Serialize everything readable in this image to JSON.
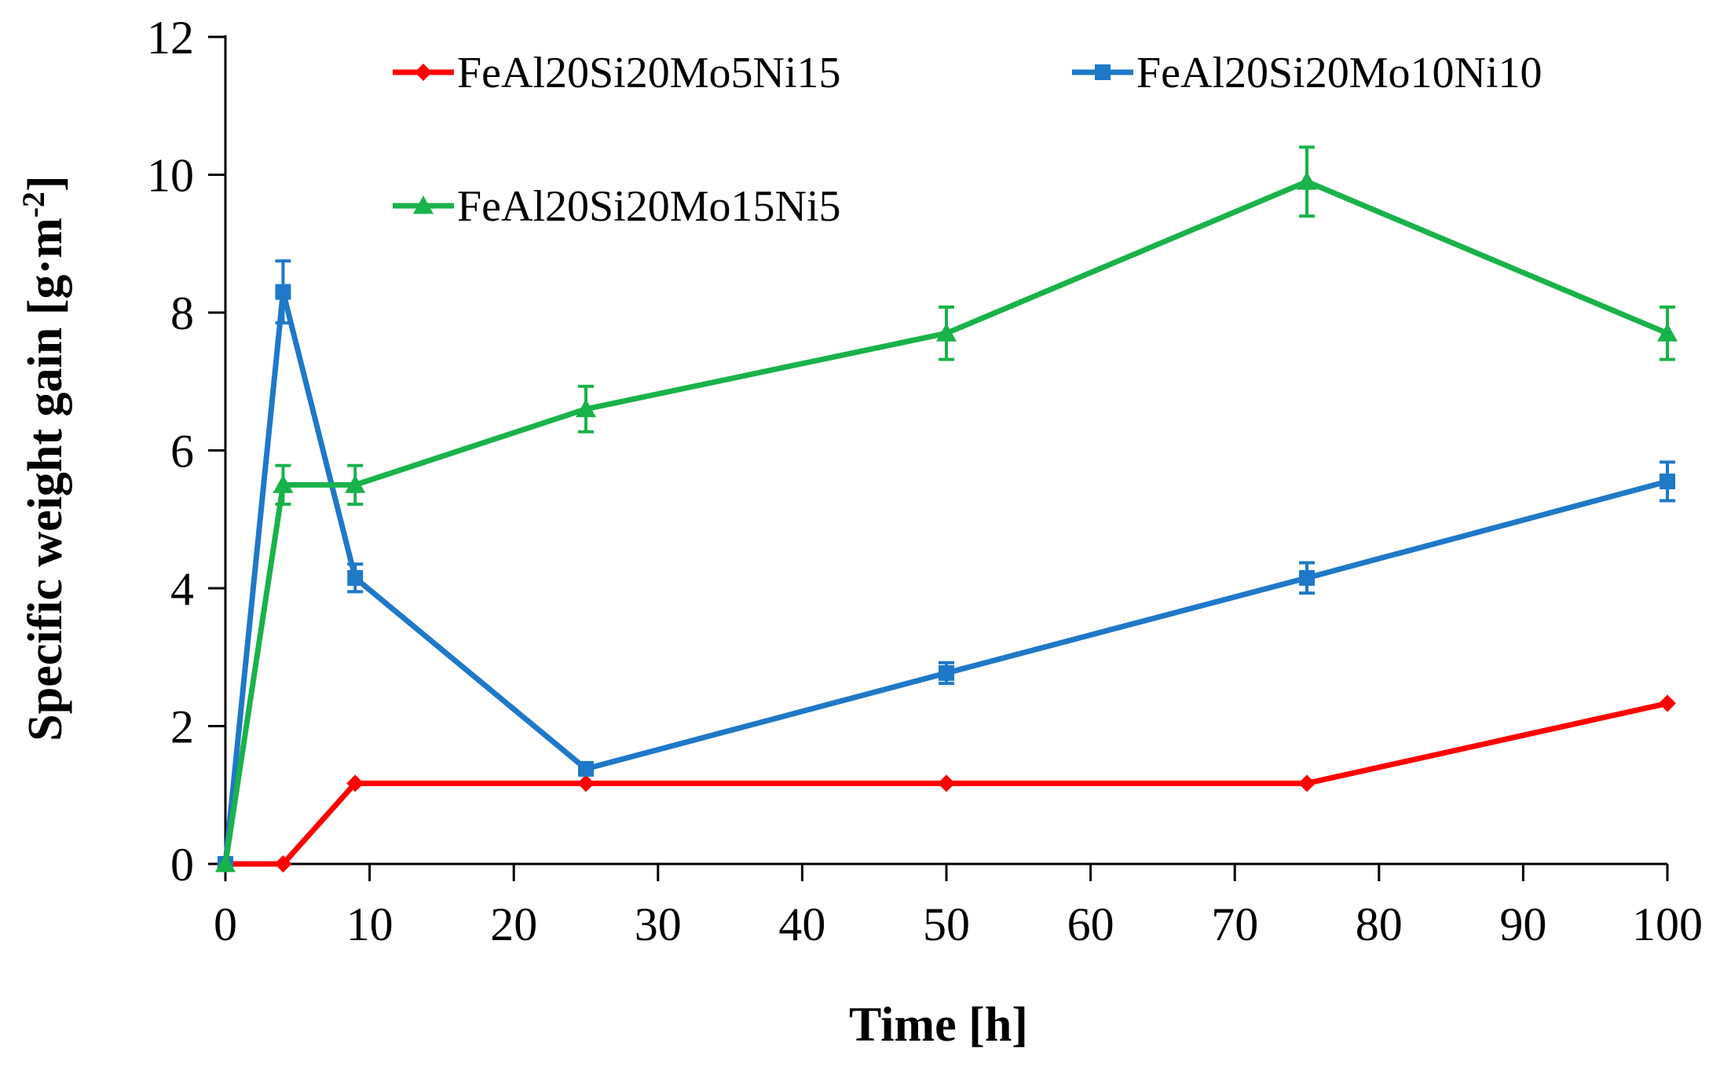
{
  "chart_data": {
    "type": "line",
    "title": "",
    "xlabel": "Time [h]",
    "ylabel": "Specific weight gain [g·m",
    "ylabel_superscript": "-2",
    "ylabel_suffix": "]",
    "xlim": [
      0,
      100
    ],
    "ylim": [
      0,
      12
    ],
    "xticks": [
      0,
      10,
      20,
      30,
      40,
      50,
      60,
      70,
      80,
      90,
      100
    ],
    "yticks": [
      0,
      2,
      4,
      6,
      8,
      10,
      12
    ],
    "grid": false,
    "legend_position": "top",
    "x": [
      0,
      4,
      9,
      25,
      50,
      75,
      100
    ],
    "series": [
      {
        "name": "FeAl20Si20Mo5Ni15",
        "color": "#ff0000",
        "marker": "diamond",
        "values": [
          0,
          0,
          1.17,
          1.17,
          1.17,
          1.17,
          2.33
        ],
        "errors": [
          0,
          0,
          0,
          0,
          0,
          0,
          0
        ]
      },
      {
        "name": "FeAl20Si20Mo10Ni10",
        "color": "#1f78c8",
        "marker": "square",
        "values": [
          0,
          8.3,
          4.15,
          1.38,
          2.77,
          4.15,
          5.55
        ],
        "errors": [
          0,
          0.45,
          0.2,
          0.05,
          0.15,
          0.22,
          0.28
        ]
      },
      {
        "name": "FeAl20Si20Mo15Ni5",
        "color": "#1ab24a",
        "marker": "triangle",
        "values": [
          0,
          5.5,
          5.5,
          6.6,
          7.7,
          9.9,
          7.7
        ],
        "errors": [
          0,
          0.28,
          0.28,
          0.33,
          0.38,
          0.5,
          0.38
        ]
      }
    ]
  }
}
